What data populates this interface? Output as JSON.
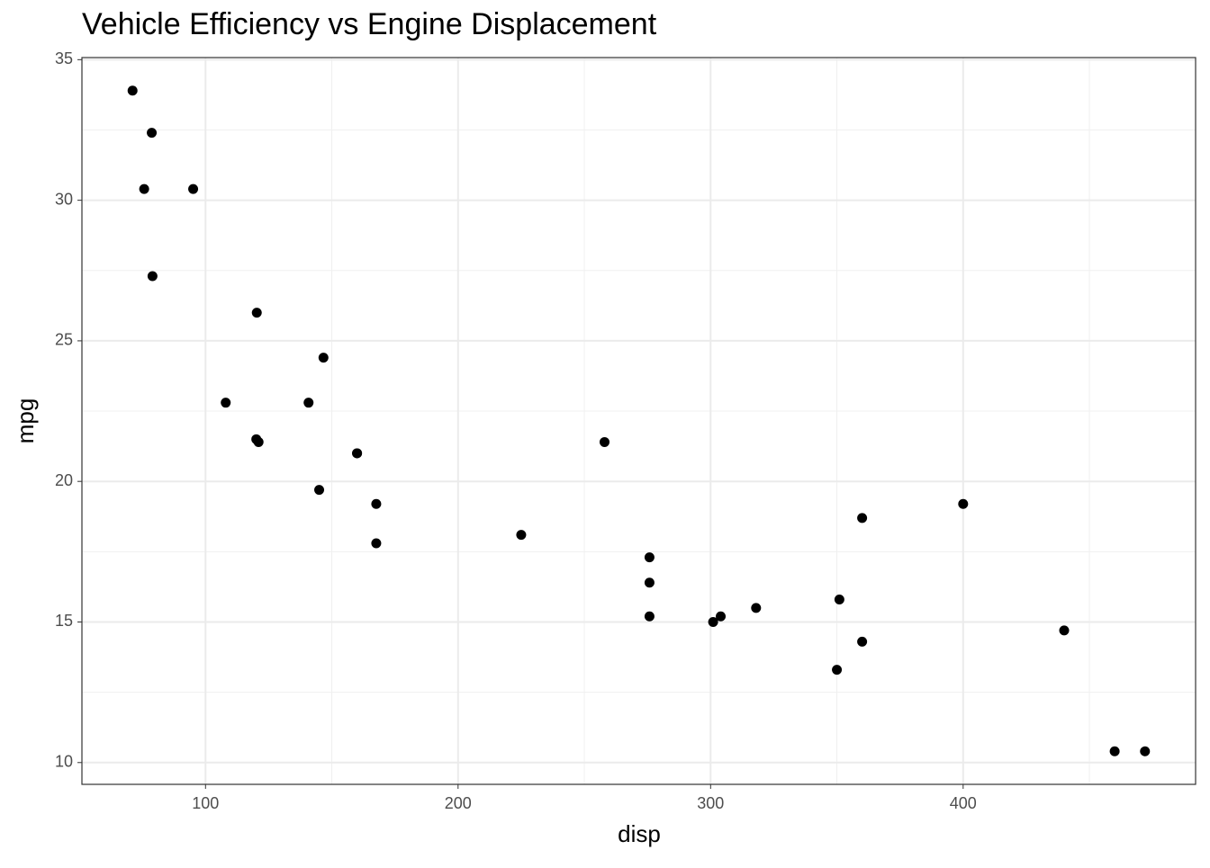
{
  "chart_data": {
    "type": "scatter",
    "title": "Vehicle Efficiency vs Engine Displacement",
    "x_label": "disp",
    "y_label": "mpg",
    "x": [
      160,
      160,
      108,
      258,
      360,
      225,
      360,
      146.7,
      140.8,
      167.6,
      167.6,
      275.8,
      275.8,
      275.8,
      472,
      460,
      440,
      78.7,
      75.7,
      71.1,
      120.1,
      318,
      304,
      350,
      400,
      79,
      120.3,
      95.1,
      351,
      145,
      301,
      121
    ],
    "values": [
      21.0,
      21.0,
      22.8,
      21.4,
      18.7,
      18.1,
      14.3,
      24.4,
      22.8,
      19.2,
      17.8,
      16.4,
      17.3,
      15.2,
      10.4,
      10.4,
      14.7,
      32.4,
      30.4,
      33.9,
      21.5,
      15.5,
      15.2,
      13.3,
      19.2,
      27.3,
      26.0,
      30.4,
      15.8,
      19.7,
      15.0,
      21.4
    ],
    "color": "#000000",
    "xlim": [
      51.055,
      492.045
    ],
    "ylim": [
      9.225,
      35.075
    ],
    "xticks": [
      100,
      200,
      300,
      400
    ],
    "yticks": [
      10,
      15,
      20,
      25,
      30,
      35
    ],
    "x_minor_ticks": [
      150,
      250,
      350,
      450
    ],
    "y_minor_ticks": [
      12.5,
      17.5,
      22.5,
      27.5,
      32.5
    ],
    "grid": true
  }
}
